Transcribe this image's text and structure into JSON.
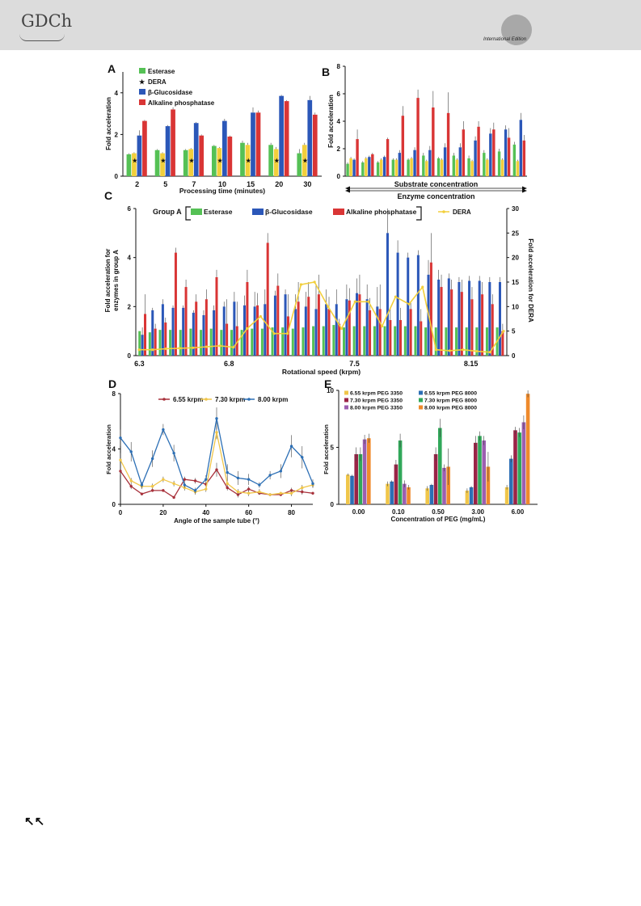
{
  "header": {
    "logo_text": "GDCh",
    "edition_text": "International Edition",
    "nav_icon": "double-up-left-arrow-icon",
    "nav_glyph": "↖↖",
    "colors": {
      "bar": "#dcdcdc",
      "circle": "#a8a8a8"
    }
  },
  "chart_data": [
    {
      "panel": "A",
      "type": "bar",
      "xlabel": "Processing time (minutes)",
      "ylabel": "Fold acceleration",
      "ylim": [
        0,
        5
      ],
      "yticks": [
        0,
        2,
        4
      ],
      "categories": [
        "2",
        "5",
        "7",
        "10",
        "15",
        "20",
        "30"
      ],
      "marker_text": "★",
      "series": [
        {
          "name": "Esterase",
          "color": "#55c155",
          "values": [
            1.05,
            1.25,
            1.25,
            1.45,
            1.6,
            1.5,
            1.1
          ],
          "errors": [
            0.05,
            0.05,
            0.05,
            0.05,
            0.1,
            0.1,
            0.2
          ]
        },
        {
          "name": "DERA",
          "color": "#f2cf3c",
          "values": [
            1.1,
            1.1,
            1.3,
            1.35,
            1.5,
            1.3,
            1.5
          ],
          "errors": [
            0.05,
            0.05,
            0.05,
            0.05,
            0.1,
            0.1,
            0.1
          ],
          "star": true
        },
        {
          "name": "β-Glucosidase",
          "color": "#2b57b8",
          "values": [
            1.95,
            2.4,
            2.55,
            2.65,
            3.05,
            3.85,
            3.65
          ],
          "errors": [
            0.25,
            0.05,
            0.05,
            0.1,
            0.25,
            0.05,
            0.2
          ]
        },
        {
          "name": "Alkaline phosphatase",
          "color": "#d93535",
          "values": [
            2.65,
            3.2,
            1.95,
            1.9,
            3.05,
            3.6,
            2.95
          ],
          "errors": [
            0.05,
            0.1,
            0.05,
            0.05,
            0.1,
            0.05,
            0.1
          ]
        }
      ]
    },
    {
      "panel": "B",
      "type": "bar",
      "ylabel": "Fold acceleration",
      "ylim": [
        0,
        8
      ],
      "yticks": [
        0,
        2,
        4,
        6,
        8
      ],
      "groups": 12,
      "annotation1": "Substrate concentration",
      "annotation2": "Enzyme concentration",
      "series": [
        {
          "name": "Esterase",
          "color": "#55c155",
          "values": [
            0.9,
            1.0,
            1.0,
            1.2,
            1.2,
            1.5,
            1.3,
            1.5,
            1.3,
            1.7,
            1.8,
            2.3
          ],
          "errors": [
            0.1,
            0.1,
            0.1,
            0.1,
            0.1,
            0.2,
            0.1,
            0.2,
            0.2,
            0.2,
            0.2,
            0.2
          ]
        },
        {
          "name": "DERA",
          "color": "#f2cf3c",
          "values": [
            1.3,
            1.3,
            1.2,
            1.2,
            1.3,
            1.1,
            1.2,
            1.2,
            1.1,
            1.2,
            1.2,
            1.1
          ],
          "errors": [
            0.1,
            0.1,
            0.1,
            0.1,
            0.1,
            0.1,
            0.1,
            0.1,
            0.1,
            0.1,
            0.1,
            0.1
          ]
        },
        {
          "name": "β-Glucosidase",
          "color": "#2b57b8",
          "values": [
            1.2,
            1.4,
            1.4,
            1.7,
            1.9,
            1.9,
            2.1,
            2.1,
            2.6,
            3.1,
            3.4,
            4.1
          ],
          "errors": [
            0.1,
            0.1,
            0.1,
            0.2,
            0.2,
            0.3,
            0.3,
            0.3,
            0.3,
            0.4,
            0.3,
            0.5
          ]
        },
        {
          "name": "Alkaline phosphatase",
          "color": "#d93535",
          "values": [
            2.7,
            1.6,
            2.7,
            4.4,
            5.7,
            5.0,
            4.6,
            3.4,
            3.6,
            3.4,
            2.8,
            2.6
          ],
          "errors": [
            0.7,
            0.1,
            0.1,
            0.7,
            0.6,
            1.2,
            1.5,
            0.6,
            0.4,
            0.5,
            0.7,
            0.4
          ]
        }
      ]
    },
    {
      "panel": "C",
      "type": "bar",
      "xlabel": "Rotational speed (krpm)",
      "ylabel_line1": "Fold acceleration for",
      "ylabel_line2": "enzymes in group A",
      "ylabel_right": "Fold acceleration for DERA",
      "group_label": "Group A",
      "ylim": [
        0,
        6
      ],
      "yticks": [
        0,
        2,
        4,
        6
      ],
      "ylim_right": [
        0,
        30
      ],
      "yticks_right": [
        0,
        5,
        10,
        15,
        20,
        25,
        30
      ],
      "xlim": [
        6.28,
        8.35
      ],
      "xticks": [
        6.3,
        6.8,
        7.5,
        8.15
      ],
      "series": [
        {
          "name": "Esterase",
          "color": "#55c155",
          "values": [
            1.0,
            0.95,
            1.05,
            1.05,
            1.05,
            1.1,
            1.05,
            1.1,
            1.05,
            1.05,
            1.05,
            1.1,
            1.1,
            1.15,
            1.15,
            1.1,
            1.15,
            1.2,
            1.2,
            1.25,
            1.15,
            1.2,
            1.2,
            1.2,
            1.2,
            1.2,
            1.2,
            1.2,
            1.15,
            1.15,
            1.15,
            1.15,
            1.15,
            1.15,
            1.15,
            1.15
          ]
        },
        {
          "name": "β-Glucosidase",
          "color": "#2b57b8",
          "values": [
            0.85,
            1.85,
            2.1,
            1.95,
            1.95,
            1.75,
            1.65,
            1.85,
            2.0,
            2.2,
            2.05,
            2.0,
            2.1,
            2.45,
            2.5,
            1.9,
            2.0,
            1.9,
            2.1,
            2.1,
            2.3,
            2.55,
            2.3,
            2.0,
            5.0,
            4.2,
            4.0,
            4.1,
            3.3,
            3.1,
            3.15,
            3.0,
            3.05,
            3.05,
            3.0,
            3.0
          ],
          "errors": [
            0.3,
            0.1,
            0.2,
            0.1,
            0.1,
            0.1,
            0.2,
            0.2,
            0.2,
            0.4,
            0.4,
            0.6,
            0.6,
            0.2,
            0.2,
            0.6,
            0.6,
            1.0,
            0.6,
            0.6,
            0.6,
            0.6,
            0.6,
            0.8,
            1.0,
            0.5,
            0.2,
            0.2,
            0.6,
            0.4,
            0.2,
            0.2,
            0.2,
            0.2,
            0.2,
            0.2
          ]
        },
        {
          "name": "Alkaline phosphatase",
          "color": "#d93535",
          "values": [
            1.7,
            1.1,
            1.35,
            4.2,
            2.8,
            2.2,
            2.3,
            3.2,
            1.3,
            1.2,
            3.0,
            2.05,
            4.6,
            2.85,
            1.6,
            2.2,
            2.4,
            2.5,
            1.9,
            1.3,
            2.25,
            2.5,
            1.85,
            1.9,
            1.45,
            1.45,
            1.9,
            1.4,
            3.8,
            2.8,
            2.7,
            2.6,
            2.3,
            2.5,
            2.1,
            1.0
          ],
          "errors": [
            0.8,
            0.2,
            0.2,
            0.2,
            0.3,
            0.3,
            0.4,
            0.3,
            1.0,
            1.0,
            0.5,
            0.5,
            0.4,
            0.5,
            0.9,
            0.8,
            0.6,
            0.8,
            0.5,
            0.2,
            0.5,
            0.8,
            0.5,
            1.0,
            0.5,
            0.5,
            0.3,
            0.5,
            1.2,
            0.5,
            0.4,
            0.5,
            0.5,
            0.5,
            0.4,
            0.3
          ]
        },
        {
          "name": "DERA",
          "color": "#f2cf3c",
          "type": "line",
          "axis": "right",
          "values": [
            1.2,
            1.2,
            1.4,
            1.5,
            1.6,
            1.8,
            2.0,
            1.7,
            5.5,
            8.0,
            4.5,
            4.5,
            14.5,
            15.0,
            10.0,
            5.5,
            11.0,
            11.0,
            6.0,
            12.0,
            10.5,
            14.0,
            1.2,
            1.0,
            1.2,
            0.9,
            0.7,
            5.0
          ]
        }
      ]
    },
    {
      "panel": "D",
      "type": "line",
      "xlabel": "Angle of the sample tube (°)",
      "ylabel": "Fold acceleration",
      "ylim": [
        0,
        8
      ],
      "yticks": [
        0,
        4,
        8
      ],
      "xlim": [
        0,
        90
      ],
      "xticks": [
        0,
        20,
        40,
        60,
        80
      ],
      "x": [
        0,
        5,
        10,
        15,
        20,
        25,
        30,
        35,
        40,
        45,
        50,
        55,
        60,
        65,
        70,
        75,
        80,
        85,
        90
      ],
      "series": [
        {
          "name": "6.55 krpm",
          "color": "#a8313b",
          "values": [
            2.4,
            1.3,
            0.75,
            1.0,
            1.0,
            0.5,
            1.8,
            1.7,
            1.45,
            2.5,
            1.2,
            0.7,
            1.1,
            0.8,
            0.7,
            0.7,
            1.0,
            0.9,
            0.8
          ],
          "errors": [
            0.3,
            0.2,
            0.1,
            0.1,
            0.1,
            0.1,
            0.2,
            0.2,
            0.2,
            0.5,
            0.2,
            0.2,
            0.2,
            0.1,
            0.1,
            0.1,
            0.2,
            0.2,
            0.1
          ]
        },
        {
          "name": "7.30 krpm",
          "color": "#f0c64a",
          "values": [
            3.2,
            1.7,
            1.3,
            1.3,
            1.8,
            1.5,
            1.2,
            0.9,
            1.1,
            5.2,
            1.5,
            0.9,
            0.8,
            0.9,
            0.7,
            0.8,
            0.8,
            1.2,
            1.4
          ],
          "errors": [
            0.5,
            0.2,
            0.2,
            0.2,
            0.2,
            0.2,
            0.2,
            0.2,
            0.2,
            0.5,
            0.2,
            0.2,
            0.2,
            0.2,
            0.1,
            0.1,
            0.2,
            0.2,
            0.2
          ]
        },
        {
          "name": "8.00 krpm",
          "color": "#2c6fb5",
          "values": [
            4.8,
            3.8,
            1.4,
            3.3,
            5.4,
            3.7,
            1.4,
            1.0,
            1.8,
            6.2,
            2.3,
            1.9,
            1.8,
            1.4,
            2.1,
            2.4,
            4.2,
            3.4,
            1.5
          ],
          "errors": [
            0.6,
            0.7,
            0.2,
            0.6,
            0.4,
            0.6,
            0.2,
            0.2,
            0.3,
            0.8,
            0.6,
            0.5,
            0.4,
            0.2,
            0.3,
            0.5,
            0.8,
            0.8,
            0.3
          ]
        }
      ]
    },
    {
      "panel": "E",
      "type": "bar",
      "xlabel": "Concentration of PEG (mg/mL)",
      "ylabel": "Fold acceleration",
      "ylim": [
        0,
        10
      ],
      "yticks": [
        0,
        5,
        10
      ],
      "categories": [
        "0.00",
        "0.10",
        "0.50",
        "3.00",
        "6.00"
      ],
      "series": [
        {
          "name": "6.55 krpm PEG 3350",
          "color": "#f0c64a",
          "values": [
            2.6,
            1.8,
            1.4,
            1.2,
            1.5
          ],
          "errors": [
            0.1,
            0.2,
            0.2,
            0.2,
            0.2
          ]
        },
        {
          "name": "6.55 krpm PEG 8000",
          "color": "#2c6fb5",
          "values": [
            2.5,
            2.0,
            1.7,
            1.5,
            4.0
          ],
          "errors": [
            0.1,
            0.1,
            0.1,
            0.1,
            0.3
          ]
        },
        {
          "name": "7.30 krpm PEG 3350",
          "color": "#9a2346",
          "values": [
            4.4,
            3.5,
            4.4,
            5.4,
            6.5
          ],
          "errors": [
            0.6,
            0.4,
            0.6,
            0.6,
            0.3
          ]
        },
        {
          "name": "7.30 krpm PEG 8000",
          "color": "#31a85a",
          "values": [
            4.4,
            5.6,
            6.7,
            6.0,
            6.3
          ],
          "errors": [
            0.6,
            0.6,
            0.8,
            0.4,
            0.4
          ]
        },
        {
          "name": "8.00 krpm PEG 3350",
          "color": "#9c5fb0",
          "values": [
            5.7,
            1.8,
            3.2,
            5.6,
            7.2
          ],
          "errors": [
            0.4,
            0.3,
            0.3,
            0.4,
            0.6
          ]
        },
        {
          "name": "8.00 krpm PEG 8000",
          "color": "#ef8a2c",
          "values": [
            5.8,
            1.5,
            3.3,
            3.3,
            9.7
          ],
          "errors": [
            0.4,
            0.2,
            1.6,
            1.3,
            0.3
          ]
        }
      ]
    }
  ]
}
